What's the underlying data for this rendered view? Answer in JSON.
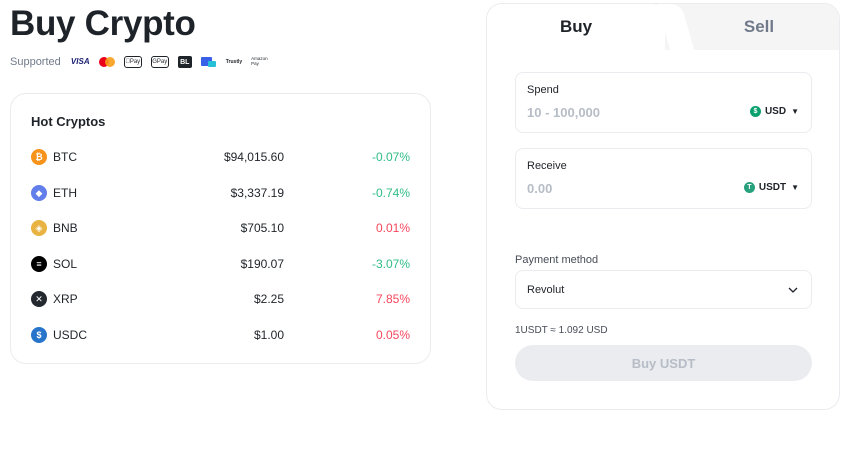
{
  "header": {
    "title": "Buy Crypto"
  },
  "supported": {
    "label": "Supported",
    "logos": [
      "VISA",
      "mastercard",
      "Pay",
      "Pay",
      "BL",
      "bank-transfer",
      "Trustly",
      "Amazon Pay"
    ]
  },
  "hot": {
    "title": "Hot Cryptos",
    "rows": [
      {
        "symbol": "BTC",
        "price": "$94,015.60",
        "change": "-0.07%",
        "icon": "bitcoin-icon",
        "color": "#f7931a"
      },
      {
        "symbol": "ETH",
        "price": "$3,337.19",
        "change": "-0.74%",
        "icon": "ethereum-icon",
        "color": "#627eea"
      },
      {
        "symbol": "BNB",
        "price": "$705.10",
        "change": "0.01%",
        "icon": "bnb-icon",
        "color": "#e8b342"
      },
      {
        "symbol": "SOL",
        "price": "$190.07",
        "change": "-3.07%",
        "icon": "solana-icon",
        "color": "#000000"
      },
      {
        "symbol": "XRP",
        "price": "$2.25",
        "change": "7.85%",
        "icon": "xrp-icon",
        "color": "#23292f"
      },
      {
        "symbol": "USDC",
        "price": "$1.00",
        "change": "0.05%",
        "icon": "usdc-icon",
        "color": "#2775ca"
      }
    ]
  },
  "trade": {
    "tabs": {
      "buy": "Buy",
      "sell": "Sell"
    },
    "spend": {
      "label": "Spend",
      "placeholder": "10 - 100,000",
      "currency": "USD",
      "currency_icon": "dollar-icon",
      "currency_color": "#0aa06e"
    },
    "receive": {
      "label": "Receive",
      "placeholder": "0.00",
      "currency": "USDT",
      "currency_icon": "tether-icon",
      "currency_color": "#26a17b"
    },
    "payment": {
      "label": "Payment method",
      "value": "Revolut"
    },
    "rate": "1USDT ≈ 1.092 USD",
    "button": "Buy USDT"
  },
  "colors": {
    "negative_change": "#2ebd85",
    "positive_change": "#f6465d"
  }
}
